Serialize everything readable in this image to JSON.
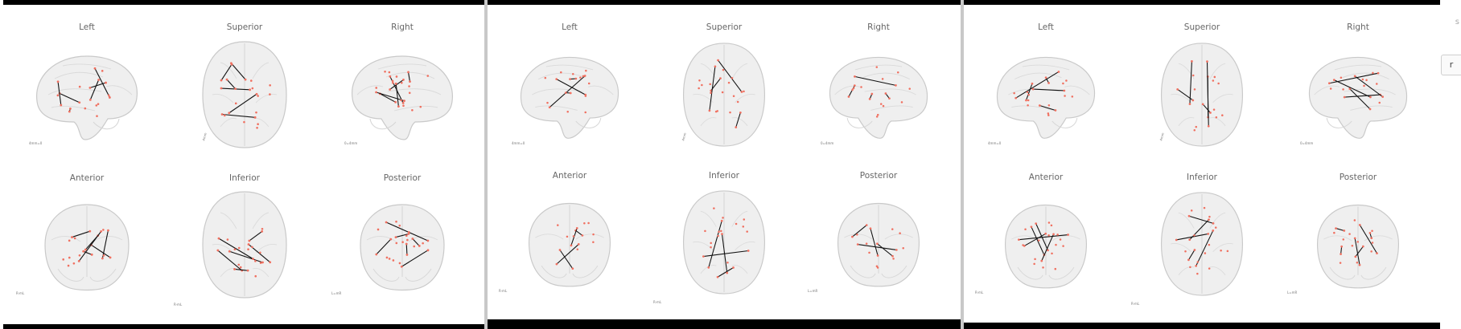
{
  "views": [
    {
      "key": "left",
      "label": "Left",
      "scale": "4mm=0"
    },
    {
      "key": "superior",
      "label": "Superior",
      "scale": "4mm"
    },
    {
      "key": "right",
      "label": "Right",
      "scale": "0=4mm"
    },
    {
      "key": "anterior",
      "label": "Anterior",
      "scale": "R-mL"
    },
    {
      "key": "inferior",
      "label": "Inferior",
      "scale": "R-mL"
    },
    {
      "key": "posterior",
      "label": "Posterior",
      "scale": "L=mR"
    }
  ],
  "colors": {
    "brain_fill": "#efefef",
    "brain_stroke": "#c9c9c9",
    "node": "#f07060",
    "edge": "#111111",
    "bar": "#000000"
  },
  "right_tab": {
    "label": "r"
  },
  "right_edge_char": "s"
}
